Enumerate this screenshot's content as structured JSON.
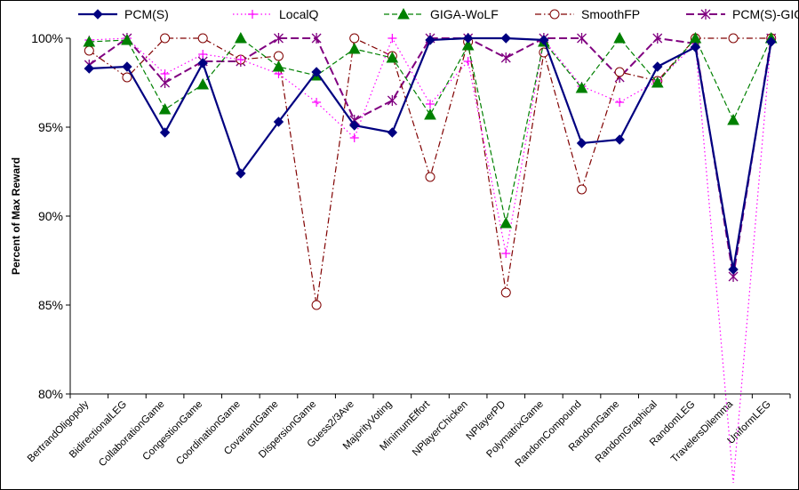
{
  "chart_data": {
    "type": "line",
    "title": "",
    "xlabel": "",
    "ylabel": "Percent of Max Reward",
    "ylim": [
      80,
      100
    ],
    "yticks": [
      80,
      85,
      90,
      95,
      100
    ],
    "ytick_labels": [
      "80%",
      "85%",
      "90%",
      "95%",
      "100%"
    ],
    "grid": false,
    "legend_position": "top",
    "categories": [
      "BertrandOligopoly",
      "BidirectionalLEG",
      "CollaborationGame",
      "CongestionGame",
      "CoordinationGame",
      "CovariantGame",
      "DispersionGame",
      "Guess2/3Ave",
      "MajorityVoting",
      "MinimumEffort",
      "NPlayerChicken",
      "NPlayerPD",
      "PolymatrixGame",
      "RandomCompound",
      "RandomGame",
      "RandomGraphical",
      "RandomLEG",
      "TravelersDilemma",
      "UniformLEG"
    ],
    "series": [
      {
        "name": "PCM(S)",
        "color": "#000080",
        "marker": "diamond",
        "dash": "solid",
        "values": [
          98.3,
          98.4,
          94.7,
          98.6,
          92.4,
          95.3,
          98.1,
          95.1,
          94.7,
          99.9,
          100,
          100,
          99.9,
          94.1,
          94.3,
          98.4,
          99.5,
          87.0,
          99.8
        ]
      },
      {
        "name": "LocalQ",
        "color": "#ff00ff",
        "marker": "plus",
        "dash": "dot",
        "values": [
          99.9,
          100,
          98.0,
          99.1,
          98.8,
          98.0,
          96.4,
          94.4,
          100,
          96.3,
          98.7,
          87.9,
          99.9,
          97.3,
          96.4,
          97.6,
          99.7,
          75,
          100
        ]
      },
      {
        "name": "GIGA-WoLF",
        "color": "#008000",
        "marker": "triangle",
        "dash": "dash",
        "values": [
          99.8,
          99.9,
          96.0,
          97.4,
          100,
          98.4,
          97.9,
          99.4,
          98.9,
          95.7,
          99.6,
          89.6,
          99.8,
          97.2,
          100,
          97.5,
          100,
          95.4,
          100
        ]
      },
      {
        "name": "SmoothFP",
        "color": "#800000",
        "marker": "circle",
        "dash": "dashdot",
        "values": [
          99.3,
          97.8,
          100,
          100,
          98.8,
          99.0,
          85.0,
          100,
          99.0,
          92.2,
          99.8,
          85.7,
          99.2,
          91.5,
          98.1,
          97.6,
          100,
          100,
          100
        ]
      },
      {
        "name": "PCM(S)-GIGA",
        "color": "#800080",
        "marker": "asterisk",
        "dash": "longdash",
        "values": [
          98.5,
          100,
          97.5,
          98.7,
          98.7,
          100,
          100,
          95.4,
          96.5,
          100,
          100,
          98.9,
          100,
          100,
          97.8,
          100,
          99.7,
          86.6,
          100
        ]
      }
    ]
  }
}
